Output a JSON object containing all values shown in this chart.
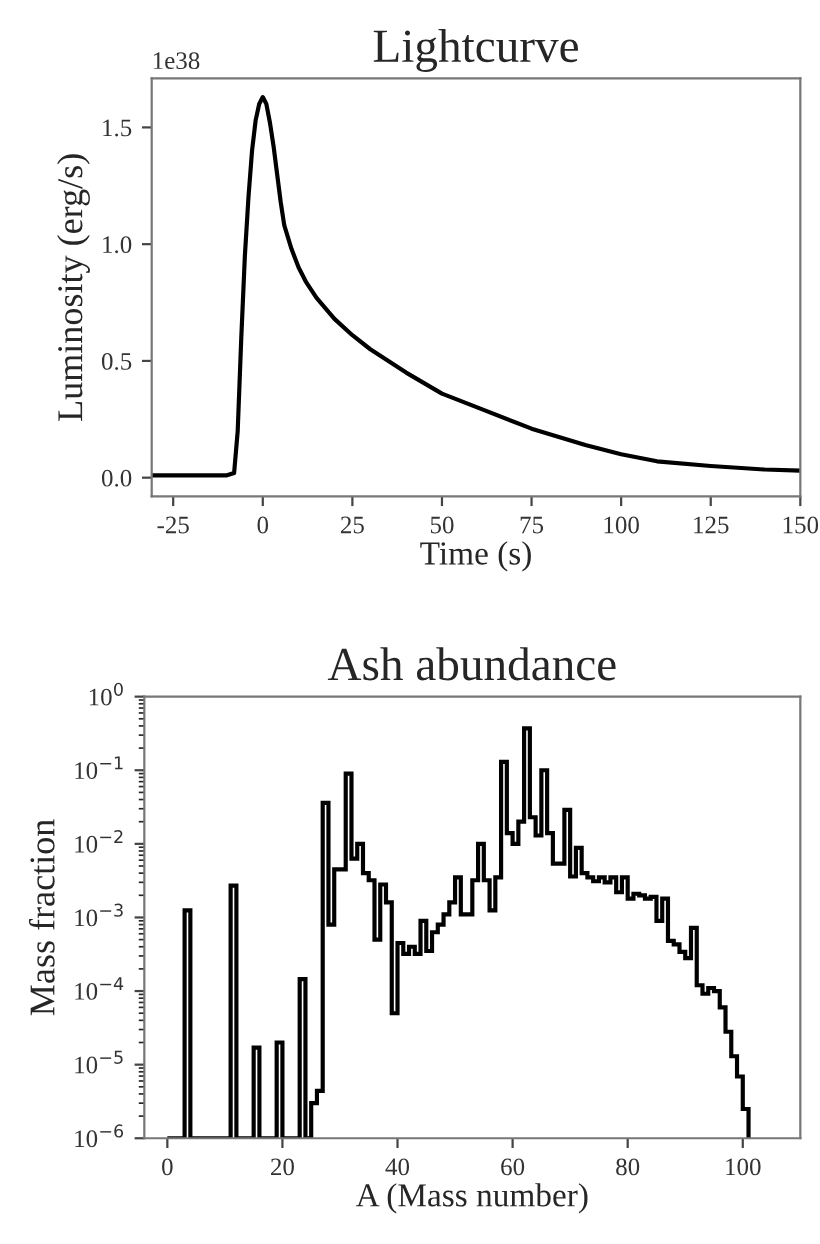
{
  "chart_data": [
    {
      "type": "line",
      "title": "Lightcurve",
      "xlabel": "Time (s)",
      "ylabel": "Luminosity (erg/s)",
      "annotations": [
        "1e38"
      ],
      "xlim": [
        -31,
        150
      ],
      "ylim": [
        -0.08,
        1.71
      ],
      "xticks": [
        -25,
        0,
        25,
        50,
        75,
        100,
        125,
        150
      ],
      "yticks": [
        {
          "value": 0,
          "label": "0.0"
        },
        {
          "value": 0.5,
          "label": "0.5"
        },
        {
          "value": 1.0,
          "label": "1.0"
        },
        {
          "value": 1.5,
          "label": "1.5"
        }
      ],
      "grid": false,
      "legend": false,
      "series": [
        {
          "color": "#000000",
          "x": [
            -31,
            -10,
            -8,
            -7,
            -6,
            -5,
            -4,
            -3,
            -2,
            -1,
            0,
            1,
            2,
            3,
            4,
            5,
            6,
            8,
            10,
            12,
            15,
            20,
            25,
            30,
            40,
            50,
            60,
            75,
            90,
            100,
            110,
            125,
            140,
            150
          ],
          "values": [
            0.01,
            0.01,
            0.02,
            0.2,
            0.6,
            0.95,
            1.2,
            1.4,
            1.53,
            1.6,
            1.63,
            1.6,
            1.52,
            1.42,
            1.3,
            1.18,
            1.08,
            0.98,
            0.9,
            0.84,
            0.77,
            0.68,
            0.61,
            0.55,
            0.45,
            0.36,
            0.3,
            0.21,
            0.14,
            0.1,
            0.07,
            0.05,
            0.035,
            0.03
          ]
        }
      ]
    },
    {
      "type": "histogram",
      "title": "Ash abundance",
      "xlabel": "A (Mass number)",
      "ylabel": "Mass fraction",
      "log": "y",
      "xlim": [
        -4,
        110
      ],
      "ylim": [
        1e-06,
        1
      ],
      "xticks": [
        0,
        20,
        40,
        60,
        80,
        100
      ],
      "yticks": [
        {
          "value": 1e-06,
          "label": "10$^{−6}$"
        },
        {
          "value": 1e-05,
          "label": "10$^{−5}$"
        },
        {
          "value": 0.0001,
          "label": "10$^{−4}$"
        },
        {
          "value": 0.001,
          "label": "10$^{−3}$"
        },
        {
          "value": 0.01,
          "label": "10$^{−2}$"
        },
        {
          "value": 0.1,
          "label": "10$^{−1}$"
        },
        {
          "value": 1,
          "label": "10$^{0}$"
        }
      ],
      "grid": false,
      "legend": false,
      "color": "#000000",
      "bins": [
        0,
        1,
        2,
        3,
        4,
        5,
        6,
        7,
        8,
        9,
        10,
        11,
        12,
        13,
        14,
        15,
        16,
        17,
        18,
        19,
        20,
        21,
        22,
        23,
        24,
        25,
        26,
        27,
        28,
        29,
        30,
        31,
        32,
        33,
        34,
        35,
        36,
        37,
        38,
        39,
        40,
        41,
        42,
        43,
        44,
        45,
        46,
        47,
        48,
        49,
        50,
        51,
        52,
        53,
        54,
        55,
        56,
        57,
        58,
        59,
        60,
        61,
        62,
        63,
        64,
        65,
        66,
        67,
        68,
        69,
        70,
        71,
        72,
        73,
        74,
        75,
        76,
        77,
        78,
        79,
        80,
        81,
        82,
        83,
        84,
        85,
        86,
        87,
        88,
        89,
        90,
        91,
        92,
        93,
        94,
        95,
        96,
        97,
        98,
        99,
        100,
        101
      ],
      "values": [
        null,
        null,
        null,
        0.00125,
        null,
        null,
        null,
        null,
        null,
        null,
        null,
        0.0027,
        null,
        null,
        null,
        1.7e-05,
        null,
        null,
        null,
        2e-05,
        null,
        null,
        null,
        0.000145,
        null,
        3e-06,
        4.4e-06,
        0.036,
        0.0008,
        0.0045,
        0.0045,
        0.09,
        0.0063,
        0.01,
        0.004,
        0.0032,
        0.0005,
        0.0028,
        0.0016,
        5e-05,
        0.00045,
        0.00032,
        0.0004,
        0.00032,
        0.0009,
        0.00035,
        0.00063,
        0.0008,
        0.0011,
        0.0016,
        0.0035,
        0.0011,
        0.0011,
        0.0032,
        0.01,
        0.0032,
        0.00125,
        0.0035,
        0.13,
        0.014,
        0.01,
        0.02,
        0.37,
        0.023,
        0.013,
        0.1,
        0.014,
        0.0054,
        0.0054,
        0.029,
        0.0036,
        0.0088,
        0.004,
        0.0035,
        0.0031,
        0.0035,
        0.003,
        0.0035,
        0.0022,
        0.0035,
        0.0018,
        0.0021,
        0.002,
        0.0018,
        0.0019,
        0.0009,
        0.0018,
        0.00048,
        0.00043,
        0.00034,
        0.00028,
        0.00072,
        0.00012,
        9.2e-05,
        0.00011,
        0.0001,
        6e-05,
        2.8e-05,
        1.3e-05,
        6.9e-06,
        2.5e-06
      ]
    }
  ]
}
